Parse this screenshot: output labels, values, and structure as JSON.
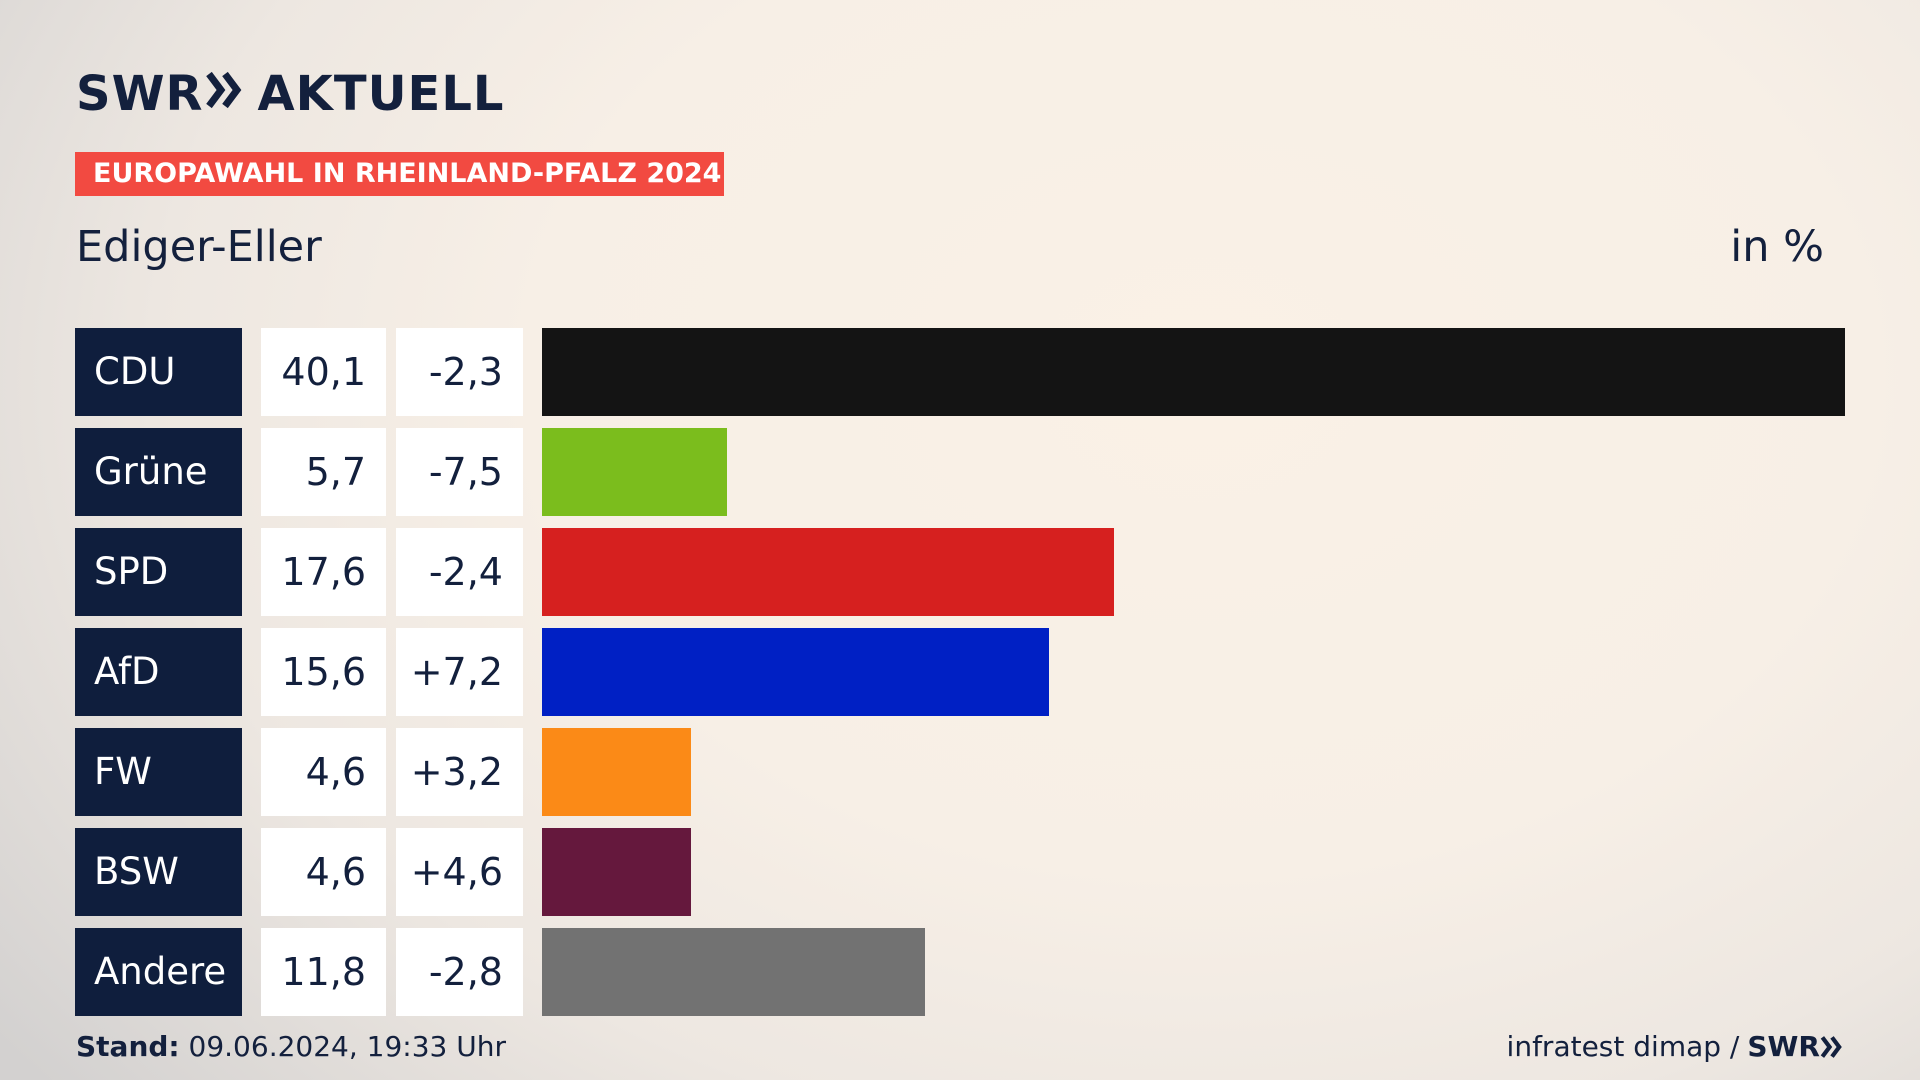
{
  "brand": {
    "swr": "SWR",
    "aktuell": "AKTUELL"
  },
  "tag": "EUROPAWAHL IN RHEINLAND-PFALZ 2024",
  "place": "Ediger-Eller",
  "unit": "in %",
  "footer": {
    "stand_label": "Stand:",
    "stand_value": "09.06.2024, 19:33 Uhr",
    "source": "infratest dimap /",
    "source_brand": "SWR"
  },
  "chart_data": {
    "type": "bar",
    "categories": [
      "CDU",
      "Grüne",
      "SPD",
      "AfD",
      "FW",
      "BSW",
      "Andere"
    ],
    "values": [
      40.1,
      5.7,
      17.6,
      15.6,
      4.6,
      4.6,
      11.8
    ],
    "labels": [
      "40,1",
      "5,7",
      "17,6",
      "15,6",
      "4,6",
      "4,6",
      "11,8"
    ],
    "changes": [
      -2.3,
      -7.5,
      -2.4,
      7.2,
      3.2,
      4.6,
      -2.8
    ],
    "change_labels": [
      "-2,3",
      "-7,5",
      "-2,4",
      "+7,2",
      "+3,2",
      "+4,6",
      "-2,8"
    ],
    "colors": [
      "#141414",
      "#7bbd1d",
      "#d6201f",
      "#0020c4",
      "#fb8a17",
      "#65183d",
      "#727272"
    ],
    "orientation": "horizontal"
  }
}
